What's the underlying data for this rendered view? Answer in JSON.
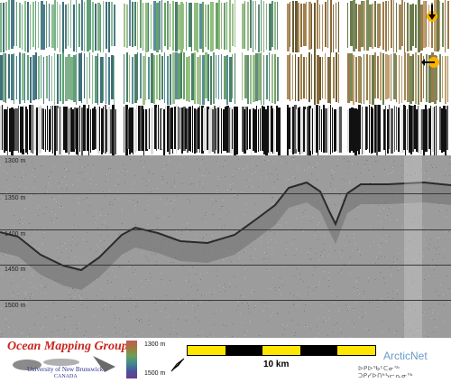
{
  "profile": {
    "depth_labels": [
      "1300 m",
      "1350 m",
      "1400 m",
      "1450 m",
      "1500 m"
    ]
  },
  "footer": {
    "logo_title": "Ocean Mapping Group",
    "university_line1": "University of New Brunswick",
    "university_line2": "CANADA",
    "colorbar_top": "1300 m",
    "colorbar_bottom": "1500 m",
    "scale_label": "10 km",
    "partner_name": "ArcticNet",
    "partner_syllabics": "ᐅᑭᐅᖃᑦᑕᓂᖅ ᑐᑭᓯᐅᑎᒃᓴᓕᕆᓂᖅ"
  },
  "colors": {
    "logo_red": "#c8261d",
    "unb_blue": "#2a2f8c",
    "scale_yellow": "#ffe600",
    "scale_black": "#000000"
  },
  "icons": [
    "sun-icon-illumination-top",
    "sun-icon-illumination-side",
    "north-arrow-icon"
  ]
}
